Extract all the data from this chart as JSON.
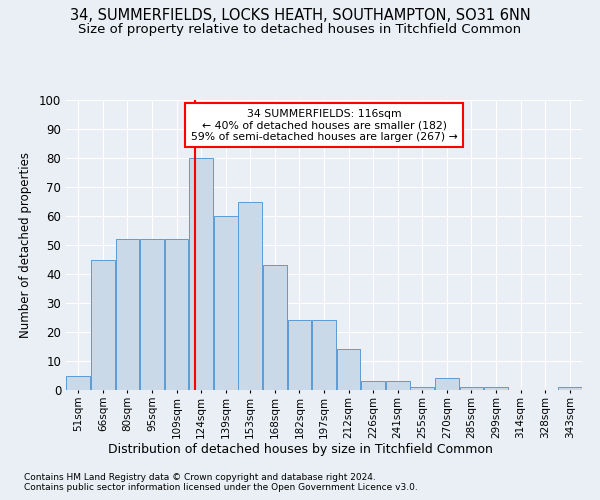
{
  "title1": "34, SUMMERFIELDS, LOCKS HEATH, SOUTHAMPTON, SO31 6NN",
  "title2": "Size of property relative to detached houses in Titchfield Common",
  "xlabel": "Distribution of detached houses by size in Titchfield Common",
  "ylabel": "Number of detached properties",
  "footnote1": "Contains HM Land Registry data © Crown copyright and database right 2024.",
  "footnote2": "Contains public sector information licensed under the Open Government Licence v3.0.",
  "bin_labels": [
    "51sqm",
    "66sqm",
    "80sqm",
    "95sqm",
    "109sqm",
    "124sqm",
    "139sqm",
    "153sqm",
    "168sqm",
    "182sqm",
    "197sqm",
    "212sqm",
    "226sqm",
    "241sqm",
    "255sqm",
    "270sqm",
    "285sqm",
    "299sqm",
    "314sqm",
    "328sqm",
    "343sqm"
  ],
  "bar_heights": [
    5,
    45,
    52,
    52,
    52,
    80,
    60,
    65,
    43,
    24,
    24,
    14,
    3,
    3,
    1,
    4,
    1,
    1,
    0,
    0,
    1
  ],
  "bar_color": "#c9d9e8",
  "bar_edge_color": "#5b9bd5",
  "vline_x": 4.73,
  "vline_color": "red",
  "annotation_text": "34 SUMMERFIELDS: 116sqm\n← 40% of detached houses are smaller (182)\n59% of semi-detached houses are larger (267) →",
  "annotation_box_color": "white",
  "annotation_box_edge": "red",
  "ylim": [
    0,
    100
  ],
  "yticks": [
    0,
    10,
    20,
    30,
    40,
    50,
    60,
    70,
    80,
    90,
    100
  ],
  "bg_color": "#eaeff5",
  "plot_bg_color": "#eaeff5",
  "grid_color": "white",
  "title1_fontsize": 10.5,
  "title2_fontsize": 9.5
}
